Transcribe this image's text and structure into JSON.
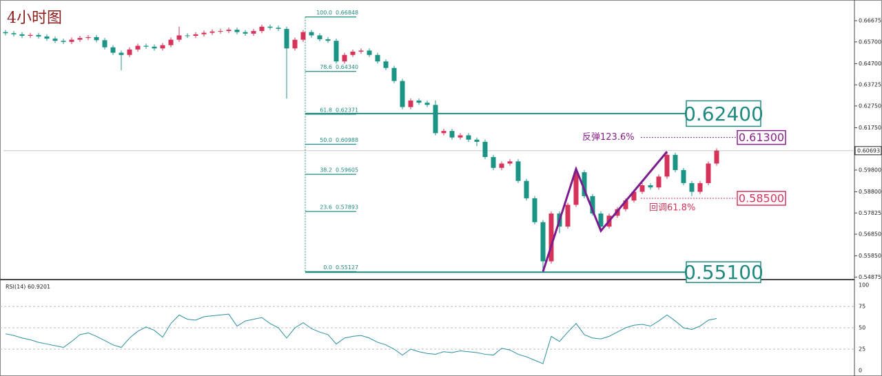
{
  "chart_data": {
    "type": "candlestick",
    "title": "4小时图",
    "up_color": "#d6335a",
    "down_color": "#1b9486",
    "ylim": [
      0.5479,
      0.6747
    ],
    "yticks": [
      0.66675,
      {
        "value": 0.657,
        "label": "0.65700"
      },
      {
        "value": 0.647,
        "label": "0.64700"
      },
      0.63725,
      {
        "value": 0.6275,
        "label": "0.62750"
      },
      {
        "value": 0.6175,
        "label": "0.61750"
      },
      {
        "value": 0.598,
        "label": "0.59800"
      },
      {
        "value": 0.588,
        "label": "0.58800"
      },
      0.57825,
      {
        "value": 0.5685,
        "label": "0.56850"
      },
      {
        "value": 0.5585,
        "label": "0.55850"
      },
      0.54875
    ],
    "current_price": 0.60693,
    "candles": {
      "open": [
        0.6615,
        0.661,
        0.6605,
        0.6598,
        0.6602,
        0.6595,
        0.6585,
        0.6575,
        0.657,
        0.658,
        0.6588,
        0.6592,
        0.6578,
        0.6545,
        0.652,
        0.651,
        0.6535,
        0.6552,
        0.6548,
        0.654,
        0.6555,
        0.658,
        0.66,
        0.6598,
        0.6605,
        0.6612,
        0.6618,
        0.662,
        0.6626,
        0.6615,
        0.6608,
        0.662,
        0.664,
        0.6635,
        0.663,
        0.654,
        0.658,
        0.6615,
        0.66,
        0.6582,
        0.6575,
        0.648,
        0.651,
        0.6525,
        0.653,
        0.651,
        0.648,
        0.645,
        0.639,
        0.627,
        0.63,
        0.629,
        0.628,
        0.615,
        0.616,
        0.613,
        0.614,
        0.612,
        0.611,
        0.604,
        0.599,
        0.601,
        0.602,
        0.593,
        0.585,
        0.574,
        0.556,
        0.578,
        0.572,
        0.582,
        0.597,
        0.586,
        0.578,
        0.572,
        0.577,
        0.58,
        0.584,
        0.588,
        0.591,
        0.59,
        0.595,
        0.605,
        0.598,
        0.592,
        0.588,
        0.592,
        0.601
      ],
      "high": [
        0.6625,
        0.662,
        0.6615,
        0.6612,
        0.6612,
        0.6605,
        0.6595,
        0.6585,
        0.659,
        0.6598,
        0.6602,
        0.6602,
        0.6588,
        0.6555,
        0.653,
        0.6545,
        0.6562,
        0.6562,
        0.6558,
        0.6565,
        0.659,
        0.664,
        0.661,
        0.6615,
        0.6622,
        0.6628,
        0.663,
        0.6636,
        0.6636,
        0.6625,
        0.663,
        0.665,
        0.665,
        0.6645,
        0.664,
        0.659,
        0.6625,
        0.6625,
        0.661,
        0.6592,
        0.6585,
        0.652,
        0.6535,
        0.654,
        0.654,
        0.652,
        0.649,
        0.646,
        0.64,
        0.631,
        0.631,
        0.63,
        0.63,
        0.617,
        0.617,
        0.615,
        0.615,
        0.613,
        0.612,
        0.605,
        0.602,
        0.603,
        0.603,
        0.594,
        0.586,
        0.575,
        0.579,
        0.579,
        0.583,
        0.5985,
        0.598,
        0.587,
        0.579,
        0.578,
        0.581,
        0.585,
        0.589,
        0.592,
        0.592,
        0.596,
        0.6065,
        0.606,
        0.599,
        0.593,
        0.593,
        0.602,
        0.608
      ],
      "low": [
        0.66,
        0.6595,
        0.6588,
        0.6588,
        0.6585,
        0.6575,
        0.6565,
        0.656,
        0.656,
        0.657,
        0.6578,
        0.6568,
        0.6535,
        0.651,
        0.644,
        0.65,
        0.6525,
        0.6538,
        0.653,
        0.653,
        0.6545,
        0.657,
        0.6588,
        0.6588,
        0.6595,
        0.6602,
        0.6608,
        0.661,
        0.6605,
        0.6598,
        0.6598,
        0.661,
        0.6625,
        0.662,
        0.6309,
        0.653,
        0.657,
        0.659,
        0.6572,
        0.6565,
        0.647,
        0.647,
        0.65,
        0.6515,
        0.65,
        0.647,
        0.644,
        0.638,
        0.626,
        0.626,
        0.628,
        0.627,
        0.614,
        0.614,
        0.612,
        0.612,
        0.611,
        0.609,
        0.603,
        0.598,
        0.598,
        0.6,
        0.592,
        0.584,
        0.573,
        0.55127,
        0.555,
        0.569,
        0.571,
        0.581,
        0.585,
        0.577,
        0.57,
        0.571,
        0.576,
        0.579,
        0.583,
        0.587,
        0.589,
        0.589,
        0.594,
        0.597,
        0.591,
        0.586,
        0.587,
        0.591,
        0.6
      ],
      "close": [
        0.661,
        0.6605,
        0.6598,
        0.6602,
        0.6595,
        0.6585,
        0.6575,
        0.657,
        0.658,
        0.6588,
        0.6592,
        0.6578,
        0.6545,
        0.652,
        0.651,
        0.6535,
        0.6552,
        0.6548,
        0.654,
        0.6555,
        0.658,
        0.66,
        0.6598,
        0.6605,
        0.6612,
        0.6618,
        0.662,
        0.6626,
        0.6615,
        0.6608,
        0.662,
        0.664,
        0.6635,
        0.663,
        0.654,
        0.658,
        0.6615,
        0.66,
        0.6582,
        0.6575,
        0.648,
        0.651,
        0.6525,
        0.653,
        0.651,
        0.648,
        0.645,
        0.639,
        0.627,
        0.63,
        0.629,
        0.628,
        0.615,
        0.616,
        0.613,
        0.614,
        0.612,
        0.611,
        0.604,
        0.599,
        0.601,
        0.602,
        0.593,
        0.585,
        0.574,
        0.556,
        0.578,
        0.572,
        0.582,
        0.597,
        0.586,
        0.578,
        0.572,
        0.577,
        0.58,
        0.584,
        0.588,
        0.591,
        0.59,
        0.595,
        0.605,
        0.598,
        0.592,
        0.588,
        0.592,
        0.601,
        0.60693
      ]
    },
    "fib_color": "#1f8a80",
    "fib_levels": [
      {
        "ratio": "100.0",
        "price": 0.66848
      },
      {
        "ratio": "78.6",
        "price": {
          "value": 0.6434,
          "label": "0.64340"
        }
      },
      {
        "ratio": "61.8",
        "price": 0.62371
      },
      {
        "ratio": "50.0",
        "price": 0.60988
      },
      {
        "ratio": "38.2",
        "price": 0.59605
      },
      {
        "ratio": "23.6",
        "price": 0.57893
      },
      {
        "ratio": "0.0",
        "price": 0.55127
      }
    ],
    "targets": [
      {
        "value": 0.624,
        "label": "0.62400"
      },
      {
        "value": 0.551,
        "label": "0.55100"
      }
    ],
    "annotations": [
      {
        "text": "反弹123.6%",
        "price": {
          "value": 0.613,
          "label": "0.61300"
        },
        "color": "#8a1f8a"
      },
      {
        "text": "回调61.8%",
        "price": {
          "value": 0.585,
          "label": "0.58500"
        },
        "color": "#d6335a"
      }
    ],
    "zigzag": {
      "color": "#7b1c8c",
      "candles": [
        65,
        69,
        72,
        80
      ],
      "prices": [
        0.55127,
        0.5985,
        0.57,
        0.6065
      ]
    },
    "rsi": {
      "label": "RSI(14)",
      "last": 60.9201,
      "color": "#2a8fa0",
      "ylim": [
        0,
        100
      ],
      "yticks": [
        0,
        25,
        50,
        75,
        100
      ],
      "values": [
        43,
        41,
        38,
        36,
        33,
        31,
        29,
        27,
        34,
        42,
        44,
        40,
        35,
        30,
        27,
        38,
        46,
        51,
        47,
        39,
        55,
        65,
        60,
        59,
        63,
        64,
        65,
        66,
        52,
        58,
        60,
        62,
        55,
        50,
        38,
        50,
        56,
        49,
        45,
        42,
        31,
        38,
        40,
        41,
        38,
        33,
        30,
        25,
        18,
        25,
        22,
        20,
        19,
        22,
        21,
        23,
        22,
        21,
        19,
        18,
        26,
        24,
        19,
        16,
        12,
        8,
        40,
        34,
        45,
        55,
        42,
        38,
        37,
        40,
        45,
        50,
        53,
        54,
        52,
        58,
        65,
        58,
        50,
        48,
        52,
        59,
        60.9201
      ]
    }
  }
}
